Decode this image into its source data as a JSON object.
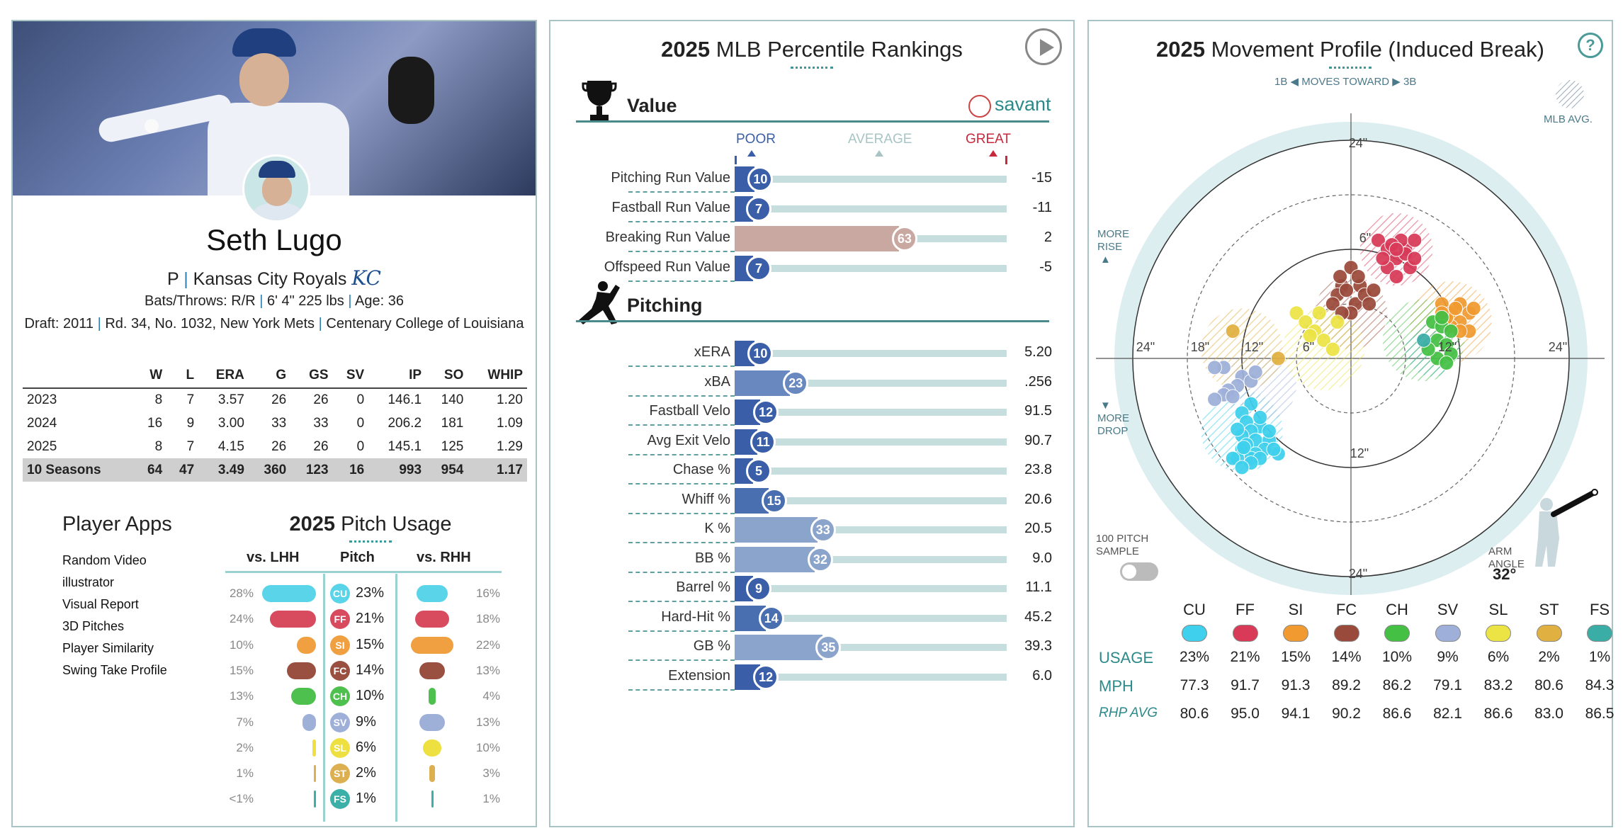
{
  "player": {
    "name": "Seth Lugo",
    "position": "P",
    "team": "Kansas City Royals",
    "team_logo": "KC",
    "bats_throws_label": "Bats/Throws:",
    "bats_throws": "R/R",
    "height_weight": "6' 4\" 225 lbs",
    "age_label": "Age:",
    "age": "36",
    "draft_label": "Draft:",
    "draft_year": "2011",
    "draft_pick": "Rd. 34, No. 1032,",
    "draft_team": "New York Mets",
    "college": "Centenary College of Louisiana"
  },
  "stats": {
    "headers": [
      "",
      "W",
      "L",
      "ERA",
      "G",
      "GS",
      "SV",
      "IP",
      "SO",
      "WHIP"
    ],
    "rows": [
      [
        "2023",
        "8",
        "7",
        "3.57",
        "26",
        "26",
        "0",
        "146.1",
        "140",
        "1.20"
      ],
      [
        "2024",
        "16",
        "9",
        "3.00",
        "33",
        "33",
        "0",
        "206.2",
        "181",
        "1.09"
      ],
      [
        "2025",
        "8",
        "7",
        "4.15",
        "26",
        "26",
        "0",
        "145.1",
        "125",
        "1.29"
      ]
    ],
    "total": [
      "10 Seasons",
      "64",
      "47",
      "3.49",
      "360",
      "123",
      "16",
      "993",
      "954",
      "1.17"
    ]
  },
  "apps": {
    "title": "Player Apps",
    "items": [
      "Random Video",
      "illustrator",
      "Visual Report",
      "3D Pitches",
      "Player Similarity",
      "Swing Take Profile"
    ]
  },
  "pitch_usage": {
    "year": "2025",
    "title": "Pitch Usage",
    "col_lhh": "vs. LHH",
    "col_pitch": "Pitch",
    "col_rhh": "vs. RHH",
    "rows": [
      {
        "code": "CU",
        "color": "#5ad4e8",
        "lhh": "28%",
        "lhh_v": 28,
        "pct": "23%",
        "rhh": "16%",
        "rhh_v": 16
      },
      {
        "code": "FF",
        "color": "#d84a5e",
        "lhh": "24%",
        "lhh_v": 24,
        "pct": "21%",
        "rhh": "18%",
        "rhh_v": 18
      },
      {
        "code": "SI",
        "color": "#f0a040",
        "lhh": "10%",
        "lhh_v": 10,
        "pct": "15%",
        "rhh": "22%",
        "rhh_v": 22
      },
      {
        "code": "FC",
        "color": "#9a5040",
        "lhh": "15%",
        "lhh_v": 15,
        "pct": "14%",
        "rhh": "13%",
        "rhh_v": 13
      },
      {
        "code": "CH",
        "color": "#4ec04e",
        "lhh": "13%",
        "lhh_v": 13,
        "pct": "10%",
        "rhh": "4%",
        "rhh_v": 4
      },
      {
        "code": "SV",
        "color": "#9fb0d8",
        "lhh": "7%",
        "lhh_v": 7,
        "pct": "9%",
        "rhh": "13%",
        "rhh_v": 13
      },
      {
        "code": "SL",
        "color": "#eee040",
        "lhh": "2%",
        "lhh_v": 2,
        "pct": "6%",
        "rhh": "10%",
        "rhh_v": 10
      },
      {
        "code": "ST",
        "color": "#dcb050",
        "lhh": "1%",
        "lhh_v": 1,
        "pct": "2%",
        "rhh": "3%",
        "rhh_v": 3
      },
      {
        "code": "FS",
        "color": "#3ab0a8",
        "lhh": "<1%",
        "lhh_v": 0.5,
        "pct": "1%",
        "rhh": "1%",
        "rhh_v": 1
      }
    ]
  },
  "percentiles": {
    "year": "2025",
    "title": "MLB Percentile Rankings",
    "value_title": "Value",
    "pitching_title": "Pitching",
    "brand": "savant",
    "scale": {
      "poor": "POOR",
      "average": "AVERAGE",
      "great": "GREAT"
    },
    "value_rows": [
      {
        "label": "Pitching Run Value",
        "pct": 10,
        "pct_label": "10",
        "value": "-15",
        "color": "#3a5fa8"
      },
      {
        "label": "Fastball Run Value",
        "pct": 7,
        "pct_label": "7",
        "value": "-11",
        "color": "#3a5fa8"
      },
      {
        "label": "Breaking Run Value",
        "pct": 63,
        "pct_label": "63",
        "value": "2",
        "color": "#c8a8a0"
      },
      {
        "label": "Offspeed Run Value",
        "pct": 7,
        "pct_label": "7",
        "value": "-5",
        "color": "#3a5fa8"
      }
    ],
    "pitching_rows": [
      {
        "label": "xERA",
        "pct": 10,
        "pct_label": "10",
        "value": "5.20",
        "color": "#3a5fa8"
      },
      {
        "label": "xBA",
        "pct": 23,
        "pct_label": "23",
        "value": ".256",
        "color": "#6a88c0"
      },
      {
        "label": "Fastball Velo",
        "pct": 12,
        "pct_label": "12",
        "value": "91.5",
        "color": "#3a5fa8"
      },
      {
        "label": "Avg Exit Velo",
        "pct": 11,
        "pct_label": "11",
        "value": "90.7",
        "color": "#3a5fa8"
      },
      {
        "label": "Chase %",
        "pct": 5,
        "pct_label": "5",
        "value": "23.8",
        "color": "#3a5fa8"
      },
      {
        "label": "Whiff %",
        "pct": 15,
        "pct_label": "15",
        "value": "20.6",
        "color": "#4a6fb0"
      },
      {
        "label": "K %",
        "pct": 33,
        "pct_label": "33",
        "value": "20.5",
        "color": "#8aa4cc"
      },
      {
        "label": "BB %",
        "pct": 32,
        "pct_label": "32",
        "value": "9.0",
        "color": "#8aa4cc"
      },
      {
        "label": "Barrel %",
        "pct": 9,
        "pct_label": "9",
        "value": "11.1",
        "color": "#3a5fa8"
      },
      {
        "label": "Hard-Hit %",
        "pct": 14,
        "pct_label": "14",
        "value": "45.2",
        "color": "#4a6fb0"
      },
      {
        "label": "GB %",
        "pct": 35,
        "pct_label": "35",
        "value": "39.3",
        "color": "#8aa4cc"
      },
      {
        "label": "Extension",
        "pct": 12,
        "pct_label": "12",
        "value": "6.0",
        "color": "#3a5fa8"
      }
    ]
  },
  "movement": {
    "year": "2025",
    "title": "Movement Profile (Induced Break)",
    "moves_toward": "MOVES TOWARD",
    "left_side": "1B",
    "right_side": "3B",
    "mlb_avg": "MLB AVG.",
    "more_rise": [
      "MORE",
      "RISE"
    ],
    "more_drop": [
      "MORE",
      "DROP"
    ],
    "ring_labels": {
      "r24": "24\"",
      "r18": "18\"",
      "r12": "12\"",
      "r6": "6\""
    },
    "sample_label": [
      "100 PITCH",
      "SAMPLE"
    ],
    "arm_angle_label": [
      "ARM",
      "ANGLE"
    ],
    "arm_angle": "32°",
    "row_usage": "USAGE",
    "row_mph": "MPH",
    "row_rhp": "RHP AVG",
    "pitches": [
      {
        "code": "CU",
        "color": "#3ed0ec",
        "usage": "23%",
        "mph": "77.3",
        "rhp": "80.6"
      },
      {
        "code": "FF",
        "color": "#d83a58",
        "usage": "21%",
        "mph": "91.7",
        "rhp": "95.0"
      },
      {
        "code": "SI",
        "color": "#f09a30",
        "usage": "15%",
        "mph": "91.3",
        "rhp": "94.1"
      },
      {
        "code": "FC",
        "color": "#9a4a3a",
        "usage": "14%",
        "mph": "89.2",
        "rhp": "90.2"
      },
      {
        "code": "CH",
        "color": "#44c044",
        "usage": "10%",
        "mph": "86.2",
        "rhp": "86.6"
      },
      {
        "code": "SV",
        "color": "#9eb0da",
        "usage": "9%",
        "mph": "79.1",
        "rhp": "82.1"
      },
      {
        "code": "SL",
        "color": "#ece444",
        "usage": "6%",
        "mph": "83.2",
        "rhp": "86.6"
      },
      {
        "code": "ST",
        "color": "#e0b040",
        "usage": "2%",
        "mph": "80.6",
        "rhp": "83.0"
      },
      {
        "code": "FS",
        "color": "#3aaea6",
        "usage": "1%",
        "mph": "84.3",
        "rhp": "86.5"
      }
    ]
  }
}
